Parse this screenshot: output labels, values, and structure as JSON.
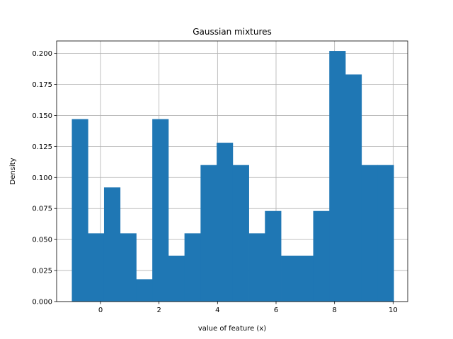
{
  "chart_data": {
    "type": "bar",
    "title": "Gaussian mixtures",
    "xlabel": "value of feature (x)",
    "ylabel": "Density",
    "xlim": [
      -1.5,
      10.5
    ],
    "ylim": [
      0.0,
      0.21
    ],
    "grid": true,
    "bar_color": "#1f77b4",
    "x_ticks": [
      {
        "value": 0,
        "label": "0"
      },
      {
        "value": 2,
        "label": "2"
      },
      {
        "value": 4,
        "label": "4"
      },
      {
        "value": 6,
        "label": "6"
      },
      {
        "value": 8,
        "label": "8"
      },
      {
        "value": 10,
        "label": "10"
      }
    ],
    "y_ticks": [
      {
        "value": 0.0,
        "label": "0.000"
      },
      {
        "value": 0.025,
        "label": "0.025"
      },
      {
        "value": 0.05,
        "label": "0.050"
      },
      {
        "value": 0.075,
        "label": "0.075"
      },
      {
        "value": 0.1,
        "label": "0.100"
      },
      {
        "value": 0.125,
        "label": "0.125"
      },
      {
        "value": 0.15,
        "label": "0.150"
      },
      {
        "value": 0.175,
        "label": "0.175"
      },
      {
        "value": 0.2,
        "label": "0.200"
      }
    ],
    "bin_edges": [
      -0.98,
      -0.43,
      0.12,
      0.67,
      1.22,
      1.77,
      2.32,
      2.87,
      3.42,
      3.97,
      4.52,
      5.07,
      5.62,
      6.17,
      6.72,
      7.27,
      7.82,
      8.37,
      8.92,
      9.47,
      10.02
    ],
    "values": [
      0.147,
      0.055,
      0.092,
      0.055,
      0.018,
      0.147,
      0.037,
      0.055,
      0.11,
      0.128,
      0.11,
      0.055,
      0.073,
      0.037,
      0.037,
      0.073,
      0.202,
      0.183,
      0.11,
      0.11
    ]
  }
}
